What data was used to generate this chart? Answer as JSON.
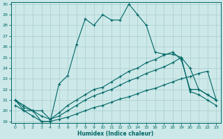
{
  "xlabel": "Humidex (Indice chaleur)",
  "background_color": "#cce8e8",
  "grid_color": "#aacccc",
  "line_color": "#006666",
  "ylim": [
    19,
    30
  ],
  "xlim": [
    -0.5,
    23.5
  ],
  "yticks": [
    19,
    20,
    21,
    22,
    23,
    24,
    25,
    26,
    27,
    28,
    29,
    30
  ],
  "xticks": [
    0,
    1,
    2,
    3,
    4,
    5,
    6,
    7,
    8,
    9,
    10,
    11,
    12,
    13,
    14,
    15,
    16,
    17,
    18,
    19,
    20,
    21,
    22,
    23
  ],
  "line1_x": [
    0,
    1,
    2,
    3,
    4,
    5,
    6,
    7,
    8,
    9,
    10,
    11,
    12,
    13,
    14,
    15,
    16,
    17,
    18,
    19,
    20,
    21,
    22,
    23
  ],
  "line1_y": [
    21.0,
    20.0,
    20.0,
    19.0,
    19.0,
    22.5,
    23.3,
    26.2,
    28.6,
    28.0,
    29.0,
    28.5,
    28.5,
    30.0,
    29.0,
    28.0,
    25.5,
    25.3,
    25.3,
    25.0,
    24.0,
    22.0,
    21.5,
    21.0
  ],
  "line2_x": [
    0,
    1,
    2,
    3,
    4,
    5,
    6,
    7,
    8,
    9,
    10,
    11,
    12,
    13,
    14,
    15,
    16,
    17,
    18,
    19,
    20,
    21,
    22,
    23
  ],
  "line2_y": [
    21.0,
    20.5,
    20.0,
    20.0,
    19.2,
    19.8,
    20.5,
    21.0,
    21.5,
    22.0,
    22.2,
    22.7,
    23.2,
    23.7,
    24.0,
    24.5,
    24.8,
    25.2,
    25.5,
    24.8,
    22.0,
    22.0,
    21.5,
    21.0
  ],
  "line3_x": [
    0,
    1,
    2,
    3,
    4,
    5,
    6,
    7,
    8,
    9,
    10,
    11,
    12,
    13,
    14,
    15,
    16,
    17,
    18,
    19,
    20,
    21,
    22,
    23
  ],
  "line3_y": [
    21.0,
    20.3,
    20.0,
    19.5,
    19.2,
    19.5,
    20.0,
    20.5,
    21.0,
    21.4,
    21.7,
    22.0,
    22.4,
    22.8,
    23.1,
    23.5,
    23.8,
    24.1,
    24.5,
    25.0,
    21.8,
    21.5,
    21.0,
    20.5
  ],
  "line4_x": [
    0,
    1,
    2,
    3,
    4,
    5,
    6,
    7,
    8,
    9,
    10,
    11,
    12,
    13,
    14,
    15,
    16,
    17,
    18,
    19,
    20,
    21,
    22,
    23
  ],
  "line4_y": [
    20.5,
    20.0,
    19.5,
    19.0,
    19.0,
    19.2,
    19.4,
    19.7,
    20.0,
    20.3,
    20.5,
    20.8,
    21.1,
    21.3,
    21.6,
    21.9,
    22.1,
    22.4,
    22.7,
    23.0,
    23.2,
    23.5,
    23.7,
    21.0
  ]
}
